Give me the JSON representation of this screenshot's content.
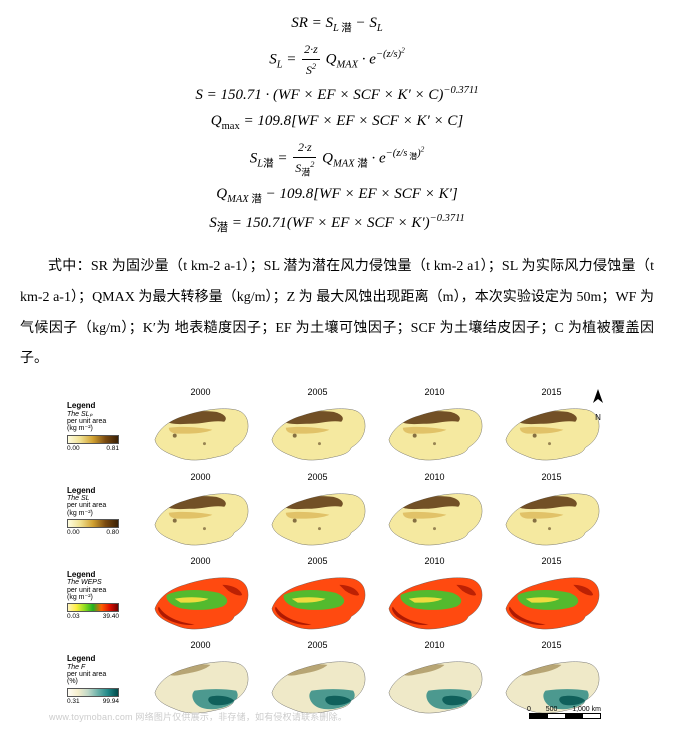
{
  "equations": {
    "eq1_lhs": "SR",
    "eq1_rhs": "S_{L 潜} − S_L",
    "eq2": "S_L = (2·z / S²) Q_MAX · e^{−(z/s)²}",
    "eq3": "S = 150.71 · (WF × EF × SCF × K′ × C)^{−0.3711}",
    "eq4": "Q_max = 109.8[WF × EF × SCF × K′ × C]",
    "eq5": "S_{L潜} = (2·z / S_潜²) Q_{MAX 潜} · e^{−(z/s_潜)²}",
    "eq6": "Q_{MAX 潜} − 109.8[WF × EF × SCF × K′]",
    "eq7": "S_潜 = 150.71(WF × EF × SCF × K′)^{−0.3711}"
  },
  "body_text": "式中：SR 为固沙量（t km-2 a-1）；SL 潜为潜在风力侵蚀量（t km-2 a1）；SL 为实际风力侵蚀量（t km-2 a-1）；QMAX 为最大转移量（kg/m）；Z 为 最大风蚀出现距离（m），本次实验设定为 50m；WF 为气候因子（kg/m）；K′为 地表糙度因子；EF 为土壤可蚀因子；SCF 为土壤结皮因子；C 为植被覆盖因子。",
  "figure": {
    "years": [
      "2000",
      "2005",
      "2010",
      "2015"
    ],
    "rows": [
      {
        "id": "slf",
        "legend_title": "Legend",
        "legend_var": "The SLₚ",
        "legend_sub": "per unit area",
        "legend_unit": "(kg m⁻²)",
        "min": "0.00",
        "max": "0.81",
        "palette": "yellow",
        "style": "yellow_brown"
      },
      {
        "id": "sl",
        "legend_title": "Legend",
        "legend_var": "The SL",
        "legend_sub": "per unit area",
        "legend_unit": "(kg m⁻²)",
        "min": "0.00",
        "max": "0.80",
        "palette": "yellow",
        "style": "yellow_brown"
      },
      {
        "id": "weps",
        "legend_title": "Legend",
        "legend_var": "The WEPS",
        "legend_sub": "per unit area",
        "legend_unit": "(kg m⁻²)",
        "min": "0.03",
        "max": "39.40",
        "palette": "redgreen",
        "style": "red_green"
      },
      {
        "id": "f",
        "legend_title": "Legend",
        "legend_var": "The F",
        "legend_sub": "per unit area",
        "legend_unit": "(%)",
        "min": "0.31",
        "max": "99.94",
        "palette": "teal",
        "style": "cream_teal"
      }
    ],
    "north_label": "N",
    "scale_numbers": [
      "0",
      "500",
      "1,000 km"
    ]
  },
  "watermark": "www.toymoban.com 网络图片仅供展示，非存储，如有侵权请联系删除。",
  "colors": {
    "yellow_brown": {
      "base": "#f5e9a0",
      "mid": "#d9b050",
      "dark": "#5a3510",
      "spots": "#3a2005"
    },
    "red_green": {
      "base": "#ff4a10",
      "dark": "#a01000",
      "green": "#4ac030",
      "yellow": "#ffe040"
    },
    "cream_teal": {
      "base": "#efe9c8",
      "dark": "#a08850",
      "teal": "#3a9088",
      "deep": "#0a5a55"
    }
  }
}
